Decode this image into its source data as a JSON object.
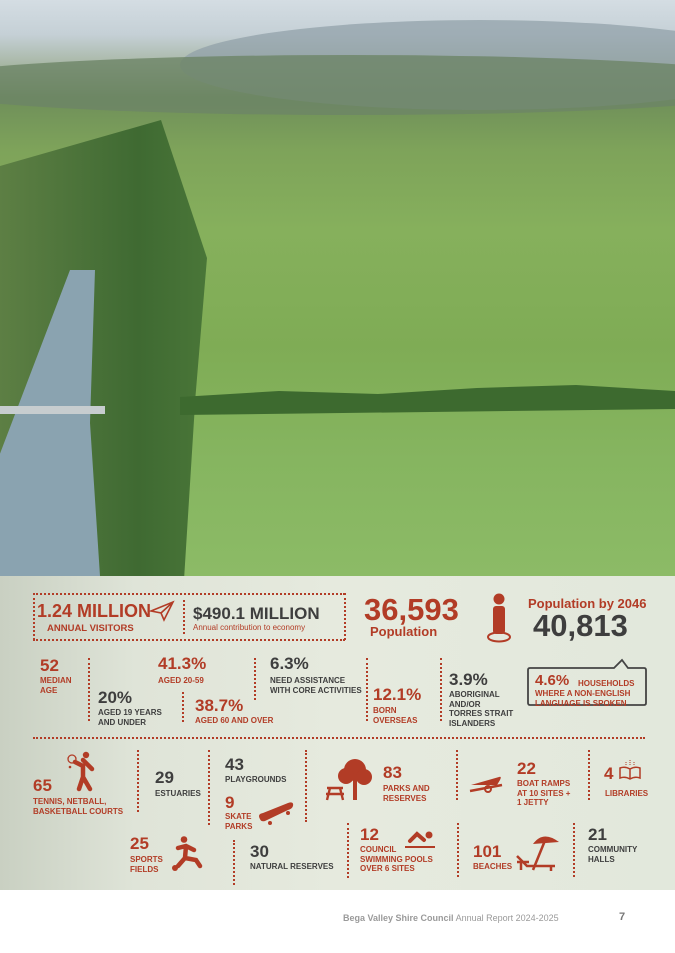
{
  "hero": {
    "visitors": {
      "value": "1.24 MILLION",
      "label": "ANNUAL VISITORS"
    },
    "economy": {
      "value": "$490.1 MILLION",
      "label": "Annual contribution to economy"
    },
    "population": {
      "value": "36,593",
      "label": "Population"
    },
    "population_2046": {
      "label": "Population by 2046",
      "value": "40,813"
    }
  },
  "demographics": [
    {
      "value": "52",
      "label": "MEDIAN AGE"
    },
    {
      "value": "41.3%",
      "label": "AGED 20-59"
    },
    {
      "value": "20%",
      "label1": "AGED 19 YEARS",
      "label2": "AND UNDER"
    },
    {
      "value": "38.7%",
      "label": "AGED 60 AND OVER"
    },
    {
      "value": "6.3%",
      "label1": "NEED ASSISTANCE",
      "label2": "WITH CORE ACTIVITIES"
    },
    {
      "value": "12.1%",
      "label1": "BORN",
      "label2": "OVERSEAS"
    },
    {
      "value": "3.9%",
      "label1": "ABORIGINAL",
      "label2": "AND/OR",
      "label3": "TORRES STRAIT",
      "label4": "ISLANDERS"
    },
    {
      "value": "4.6%",
      "label1": "HOUSEHOLDS",
      "label2": "WHERE A NON-ENGLISH",
      "label3": "LANGUAGE IS SPOKEN"
    }
  ],
  "facilities": [
    {
      "value": "65",
      "label1": "TENNIS, NETBALL,",
      "label2": "BASKETBALL COURTS",
      "icon": "tennis-player-icon"
    },
    {
      "value": "29",
      "label1": "ESTUARIES"
    },
    {
      "value": "43",
      "label1": "PLAYGROUNDS"
    },
    {
      "value": "9",
      "label1": "SKATE",
      "label2": "PARKS",
      "icon": "skateboard-icon"
    },
    {
      "value": "83",
      "label1": "PARKS AND",
      "label2": "RESERVES",
      "icon": "tree-picnic-icon"
    },
    {
      "value": "22",
      "label1": "BOAT RAMPS",
      "label2": "AT 10 SITES +",
      "label3": "1 JETTY",
      "icon": "boat-trailer-icon"
    },
    {
      "value": "4",
      "label1": "LIBRARIES",
      "icon": "book-icon"
    },
    {
      "value": "25",
      "label1": "SPORTS",
      "label2": "FIELDS",
      "icon": "soccer-player-icon"
    },
    {
      "value": "30",
      "label1": "NATURAL RESERVES"
    },
    {
      "value": "12",
      "label1": "COUNCIL",
      "label2": "SWIMMING POOLS",
      "label3": "OVER 6 SITES",
      "icon": "swimmer-icon"
    },
    {
      "value": "101",
      "label1": "BEACHES",
      "icon": "beach-umbrella-icon"
    },
    {
      "value": "21",
      "label1": "COMMUNITY",
      "label2": "HALLS"
    }
  ],
  "footer": {
    "org": "Bega Valley Shire Council",
    "report": "Annual Report 2024-2025",
    "page": "7"
  },
  "colors": {
    "accent": "#b23c26",
    "text": "#3e3e3e"
  }
}
